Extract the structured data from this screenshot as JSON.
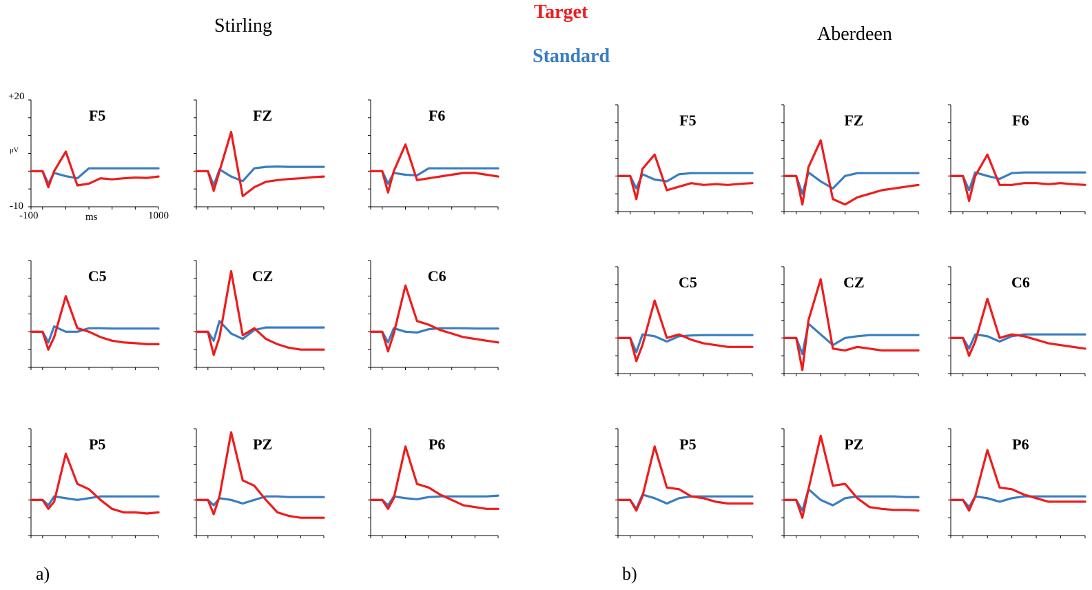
{
  "legend": {
    "target_label": "Target",
    "standard_label": "Standard",
    "target_color": "#ee1c1c",
    "standard_color": "#3a7dc0"
  },
  "axis_labels": {
    "y_max": "+20",
    "y_unit": "µV",
    "y_min": "-10",
    "x_min": "-100",
    "x_unit": "ms",
    "x_max": "1000"
  },
  "chart_data": [
    {
      "type": "line",
      "title": "Stirling",
      "panel_label": "a)",
      "xlim": [
        -100,
        1000
      ],
      "ylim": [
        -10,
        20
      ],
      "x": [
        -100,
        0,
        50,
        100,
        200,
        300,
        400,
        500,
        600,
        700,
        800,
        900,
        1000
      ],
      "channels": [
        {
          "name": "F5",
          "target": [
            0,
            0,
            -4.5,
            0,
            5.5,
            -4,
            -3.5,
            -2,
            -2.3,
            -2,
            -1.8,
            -1.9,
            -1.5
          ],
          "standard": [
            0,
            0,
            -3.5,
            -0.5,
            -1.4,
            -2,
            0.8,
            0.8,
            0.8,
            0.8,
            0.8,
            0.8,
            0.8
          ]
        },
        {
          "name": "FZ",
          "target": [
            0,
            0,
            -5.5,
            0,
            11,
            -7,
            -4.5,
            -3,
            -2.5,
            -2.2,
            -2,
            -1.7,
            -1.5
          ],
          "standard": [
            0,
            0,
            -4,
            0.5,
            -1.5,
            -2.8,
            0.8,
            1.2,
            1.3,
            1.2,
            1.2,
            1.2,
            1.2
          ]
        },
        {
          "name": "F6",
          "target": [
            0,
            0,
            -6,
            0,
            7.5,
            -2.5,
            -2,
            -1.5,
            -1,
            -0.5,
            -0.5,
            -1,
            -1.5
          ],
          "standard": [
            0,
            0,
            -3.5,
            -0.5,
            -1,
            -1.2,
            0.8,
            0.8,
            0.8,
            0.8,
            0.8,
            0.8,
            0.8
          ]
        },
        {
          "name": "C5",
          "target": [
            0,
            0,
            -5,
            -1.5,
            10,
            1,
            0,
            -1.5,
            -2.5,
            -3,
            -3.2,
            -3.5,
            -3.5
          ],
          "standard": [
            0,
            0,
            -3,
            1.5,
            0,
            0,
            1,
            1,
            0.9,
            0.9,
            0.9,
            0.9,
            0.9
          ]
        },
        {
          "name": "CZ",
          "target": [
            0,
            0,
            -6.5,
            -1.5,
            17,
            -1,
            1,
            -2,
            -3.5,
            -4.5,
            -5,
            -5,
            -5
          ],
          "standard": [
            0,
            0,
            -2.5,
            3,
            -0.5,
            -2,
            0.5,
            1.2,
            1.2,
            1.2,
            1.2,
            1.2,
            1.2
          ]
        },
        {
          "name": "C6",
          "target": [
            0,
            0,
            -5.5,
            -0.5,
            13,
            3,
            2,
            0.5,
            -0.5,
            -1.5,
            -2,
            -2.5,
            -3
          ],
          "standard": [
            0,
            0,
            -3,
            1,
            0,
            -0.2,
            0.7,
            1,
            1,
            1,
            0.9,
            0.9,
            0.9
          ]
        },
        {
          "name": "P5",
          "target": [
            0,
            0,
            -2.5,
            -0.5,
            13,
            4.5,
            3,
            0,
            -2.5,
            -3.5,
            -3.5,
            -3.8,
            -3.5
          ],
          "standard": [
            0,
            0,
            -1.5,
            1,
            0.5,
            0,
            0.5,
            1,
            1,
            1,
            1,
            1,
            1
          ]
        },
        {
          "name": "PZ",
          "target": [
            0,
            0,
            -4,
            1,
            19,
            5.5,
            4,
            0,
            -3.5,
            -4.5,
            -5,
            -5,
            -5
          ],
          "standard": [
            0,
            0,
            -1.5,
            0.5,
            0,
            -1,
            0,
            1,
            1,
            0.8,
            0.8,
            0.8,
            0.8
          ]
        },
        {
          "name": "P6",
          "target": [
            0,
            0,
            -2.5,
            0.5,
            15,
            4.5,
            3.5,
            1.5,
            0,
            -1.5,
            -2,
            -2.5,
            -2.5
          ],
          "standard": [
            0,
            0,
            -1.5,
            1,
            0.5,
            0.2,
            0.8,
            1,
            1,
            1,
            1,
            1,
            1.2
          ]
        }
      ]
    },
    {
      "type": "line",
      "title": "Aberdeen",
      "panel_label": "b)",
      "xlim": [
        -100,
        1000
      ],
      "ylim": [
        -10,
        20
      ],
      "x": [
        -100,
        0,
        50,
        100,
        200,
        300,
        400,
        500,
        600,
        700,
        800,
        900,
        1000
      ],
      "channels": [
        {
          "name": "F5",
          "target": [
            0,
            0,
            -6.5,
            2,
            6,
            -4,
            -3,
            -2,
            -2.5,
            -2.3,
            -2.5,
            -2.2,
            -2
          ],
          "standard": [
            0,
            0,
            -3.5,
            0.5,
            -1,
            -1.5,
            0.5,
            0.8,
            0.8,
            0.8,
            0.8,
            0.8,
            0.8
          ]
        },
        {
          "name": "FZ",
          "target": [
            0,
            0,
            -8,
            2.5,
            10,
            -6.5,
            -8,
            -6,
            -5,
            -4,
            -3.5,
            -3,
            -2.5
          ],
          "standard": [
            0,
            0,
            -5,
            1,
            -1.5,
            -3.5,
            0,
            0.8,
            0.8,
            0.8,
            0.8,
            0.8,
            0.8
          ]
        },
        {
          "name": "F6",
          "target": [
            0,
            0,
            -7,
            0,
            6,
            -2.5,
            -2.5,
            -2,
            -2,
            -2.3,
            -2,
            -2.3,
            -2.5
          ],
          "standard": [
            0,
            0,
            -4,
            1,
            0,
            -0.8,
            0.8,
            1,
            1,
            1,
            1,
            1,
            1
          ]
        },
        {
          "name": "C5",
          "target": [
            0,
            0,
            -6.5,
            -2,
            10.5,
            0,
            1,
            -0.5,
            -1.5,
            -2,
            -2.5,
            -2.5,
            -2.5
          ],
          "standard": [
            0,
            0,
            -4,
            1,
            0.5,
            -1,
            0.5,
            0.7,
            0.8,
            0.8,
            0.8,
            0.8,
            0.8
          ]
        },
        {
          "name": "CZ",
          "target": [
            0,
            0,
            -9,
            5,
            16.5,
            -3,
            -3.5,
            -2.5,
            -3,
            -3.5,
            -3.5,
            -3.5,
            -3.5
          ],
          "standard": [
            0,
            0,
            -4.5,
            4,
            1,
            -2,
            0,
            0.5,
            0.8,
            0.8,
            0.8,
            0.8,
            0.8
          ]
        },
        {
          "name": "C6",
          "target": [
            0,
            0,
            -5,
            -1,
            11,
            0,
            1,
            0.5,
            -0.5,
            -1.5,
            -2,
            -2.5,
            -3
          ],
          "standard": [
            0,
            0,
            -3,
            1,
            0.5,
            -1,
            0.5,
            1,
            1,
            1,
            1,
            1,
            1
          ]
        },
        {
          "name": "P5",
          "target": [
            0,
            0,
            -3,
            1,
            15,
            3.5,
            3,
            1,
            0.5,
            -0.5,
            -1,
            -1,
            -1
          ],
          "standard": [
            0,
            0,
            -2.5,
            1.5,
            0.5,
            -1,
            0.5,
            1,
            1,
            1,
            1,
            1,
            1
          ]
        },
        {
          "name": "PZ",
          "target": [
            0,
            0,
            -5,
            3,
            18,
            4,
            4.5,
            0.5,
            -2,
            -2.5,
            -2.8,
            -2.8,
            -3
          ],
          "standard": [
            0,
            0,
            -3,
            3,
            0,
            -1.5,
            0.5,
            1,
            1,
            1,
            1,
            0.8,
            0.8
          ]
        },
        {
          "name": "P6",
          "target": [
            0,
            0,
            -3,
            1,
            14,
            3.5,
            3,
            1.5,
            0.5,
            -0.5,
            -0.5,
            -0.5,
            -0.5
          ],
          "standard": [
            0,
            0,
            -2,
            1,
            0.5,
            -0.5,
            0.5,
            1,
            1,
            1,
            1,
            1,
            1
          ]
        }
      ]
    }
  ]
}
